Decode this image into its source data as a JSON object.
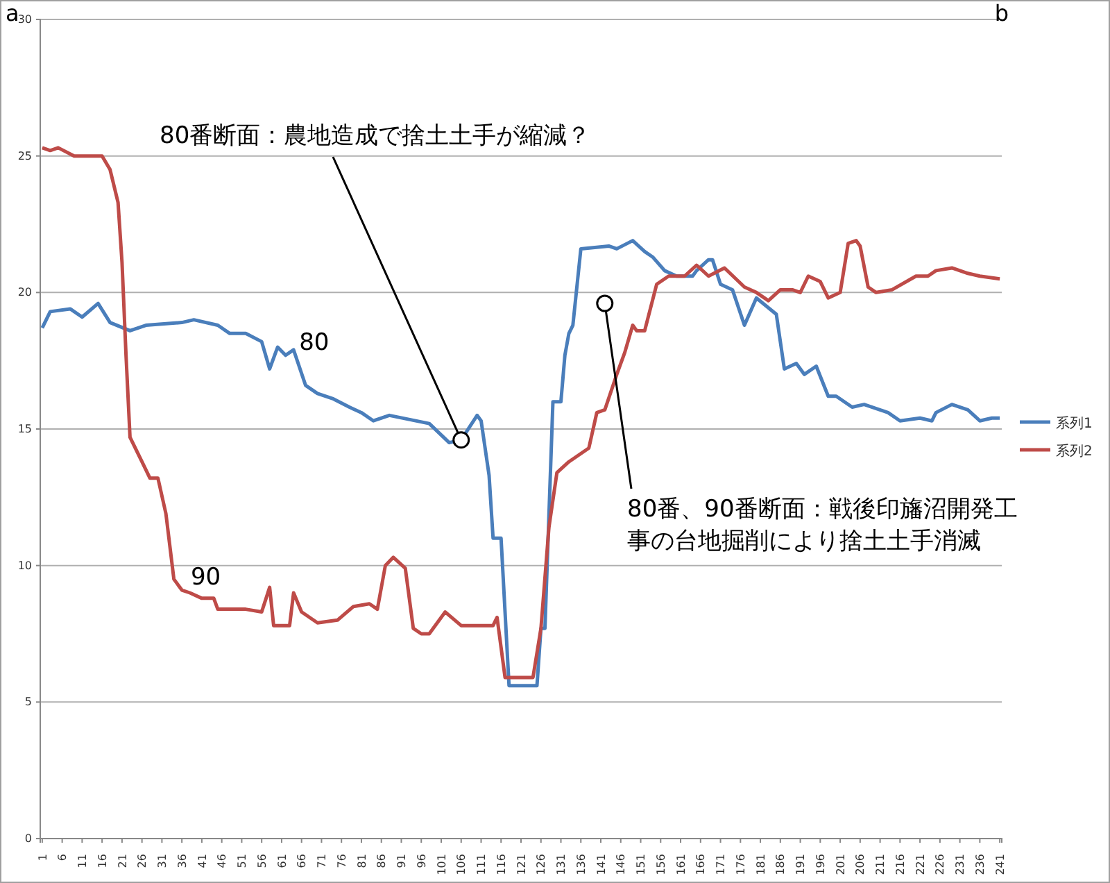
{
  "chart_data": {
    "type": "line",
    "xlim": [
      0.5,
      241.5
    ],
    "ylim": [
      0,
      30
    ],
    "xticks": [
      1,
      6,
      11,
      16,
      21,
      26,
      31,
      36,
      41,
      46,
      51,
      56,
      61,
      66,
      71,
      76,
      81,
      86,
      91,
      96,
      101,
      106,
      111,
      116,
      121,
      126,
      131,
      136,
      141,
      146,
      151,
      156,
      161,
      166,
      171,
      176,
      181,
      186,
      191,
      196,
      201,
      206,
      211,
      216,
      221,
      226,
      231,
      236,
      241
    ],
    "yticks": [
      0,
      5,
      10,
      15,
      20,
      25,
      30
    ],
    "grid": "y",
    "legend": "right",
    "marker": "none",
    "line_style": "solid",
    "series": [
      {
        "name": "系列1",
        "color": "#4a7ebb",
        "x": [
          1,
          3,
          8,
          11,
          15,
          18,
          23,
          27,
          36,
          39,
          45,
          48,
          52,
          56,
          58,
          60,
          62,
          64,
          67,
          70,
          74,
          78,
          81,
          84,
          88,
          98,
          103,
          106,
          110,
          111,
          113,
          114,
          116,
          118,
          125,
          126,
          127,
          129,
          131,
          132,
          133,
          134,
          136,
          143,
          145,
          149,
          152,
          154,
          157,
          160,
          164,
          165,
          168,
          169,
          171,
          174,
          177,
          180,
          185,
          187,
          190,
          192,
          195,
          198,
          200,
          204,
          207,
          213,
          216,
          221,
          224,
          225,
          229,
          233,
          236,
          239,
          241
        ],
        "values": [
          18.7,
          19.3,
          19.4,
          19.1,
          19.6,
          18.9,
          18.6,
          18.8,
          18.9,
          19.0,
          18.8,
          18.5,
          18.5,
          18.2,
          17.2,
          18.0,
          17.7,
          17.9,
          16.6,
          16.3,
          16.1,
          15.8,
          15.6,
          15.3,
          15.5,
          15.2,
          14.5,
          14.6,
          15.5,
          15.3,
          13.3,
          11.0,
          11.0,
          5.6,
          5.6,
          7.7,
          7.7,
          16.0,
          16.0,
          17.7,
          18.5,
          18.8,
          21.6,
          21.7,
          21.6,
          21.9,
          21.5,
          21.3,
          20.8,
          20.6,
          20.6,
          20.8,
          21.2,
          21.2,
          20.3,
          20.1,
          18.8,
          19.8,
          19.2,
          17.2,
          17.4,
          17.0,
          17.3,
          16.2,
          16.2,
          15.8,
          15.9,
          15.6,
          15.3,
          15.4,
          15.3,
          15.6,
          15.9,
          15.7,
          15.3,
          15.4,
          15.4
        ]
      },
      {
        "name": "系列2",
        "color": "#be4b48",
        "x": [
          1,
          3,
          5,
          9,
          16,
          18,
          20,
          21,
          22,
          23,
          26,
          28,
          30,
          32,
          34,
          36,
          38,
          41,
          44,
          45,
          48,
          52,
          56,
          58,
          59,
          63,
          64,
          66,
          70,
          75,
          79,
          83,
          85,
          87,
          89,
          92,
          94,
          96,
          98,
          102,
          106,
          114,
          115,
          117,
          124,
          126,
          128,
          130,
          133,
          138,
          140,
          142,
          145,
          147,
          149,
          150,
          152,
          155,
          158,
          162,
          165,
          168,
          172,
          177,
          180,
          183,
          186,
          189,
          191,
          193,
          196,
          198,
          201,
          203,
          205,
          206,
          208,
          210,
          214,
          220,
          223,
          225,
          229,
          233,
          236,
          241
        ],
        "values": [
          25.3,
          25.2,
          25.3,
          25.0,
          25.0,
          24.5,
          23.3,
          21.1,
          17.7,
          14.7,
          13.8,
          13.2,
          13.2,
          11.9,
          9.5,
          9.1,
          9.0,
          8.8,
          8.8,
          8.4,
          8.4,
          8.4,
          8.3,
          9.2,
          7.8,
          7.8,
          9.0,
          8.3,
          7.9,
          8.0,
          8.5,
          8.6,
          8.4,
          10.0,
          10.3,
          9.9,
          7.7,
          7.5,
          7.5,
          8.3,
          7.8,
          7.8,
          8.1,
          5.9,
          5.9,
          7.7,
          11.4,
          13.4,
          13.8,
          14.3,
          15.6,
          15.7,
          17.0,
          17.8,
          18.8,
          18.6,
          18.6,
          20.3,
          20.6,
          20.6,
          21.0,
          20.6,
          20.9,
          20.2,
          20.0,
          19.7,
          20.1,
          20.1,
          20.0,
          20.6,
          20.4,
          19.8,
          20.0,
          21.8,
          21.9,
          21.7,
          20.2,
          20.0,
          20.1,
          20.6,
          20.6,
          20.8,
          20.9,
          20.7,
          20.6,
          20.5
        ]
      }
    ],
    "annotations": [
      "a",
      "b",
      {
        "text": "80番断面：農地造成で捨土土手が縮減？",
        "x": 106,
        "y": 14.6
      },
      {
        "text": "80番、90番断面：戦後印旛沼開発工事の台地掘削により捨土土手消滅",
        "x": 142,
        "y": 19.6
      },
      {
        "text": "80",
        "x": 64,
        "y": 17.9
      },
      {
        "text": "90",
        "x": 41,
        "y": 8.8
      }
    ]
  }
}
